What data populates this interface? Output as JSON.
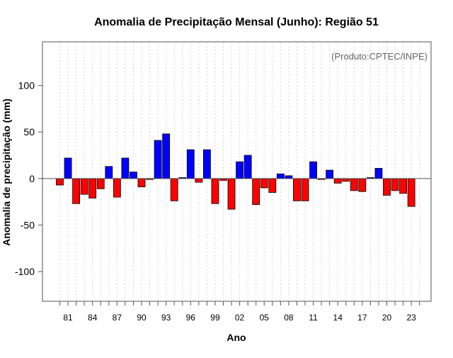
{
  "chart_data": {
    "type": "bar",
    "title": "Anomalia de Precipitação Mensal (Junho): Região 51",
    "annotation": "(Produto:CPTEC/INPE)",
    "xlabel": "Ano",
    "ylabel": "Anomalia de precipitação (mm)",
    "ylim": [
      -132,
      147
    ],
    "yticks": [
      -100,
      -50,
      0,
      50,
      100
    ],
    "xtick_labels": [
      "81",
      "84",
      "87",
      "90",
      "93",
      "96",
      "99",
      "02",
      "05",
      "08",
      "11",
      "14",
      "17",
      "20",
      "23"
    ],
    "categories": [
      "1980",
      "1981",
      "1982",
      "1983",
      "1984",
      "1985",
      "1986",
      "1987",
      "1988",
      "1989",
      "1990",
      "1991",
      "1992",
      "1993",
      "1994",
      "1995",
      "1996",
      "1997",
      "1998",
      "1999",
      "2000",
      "2001",
      "2002",
      "2003",
      "2004",
      "2005",
      "2006",
      "2007",
      "2008",
      "2009",
      "2010",
      "2011",
      "2012",
      "2013",
      "2014",
      "2015",
      "2016",
      "2017",
      "2018",
      "2019",
      "2020",
      "2021",
      "2022",
      "2023",
      "2024"
    ],
    "values": [
      -7,
      22,
      -27,
      -17,
      -21,
      -11,
      13,
      -20,
      22,
      7,
      -9,
      -1,
      41,
      48,
      -24,
      1,
      31,
      -4,
      31,
      -27,
      -2,
      -33,
      18,
      25,
      -28,
      -10,
      -15,
      5,
      3,
      -24,
      -24,
      18,
      -1,
      9,
      -5,
      -3,
      -13,
      -14,
      1,
      11,
      -18,
      -13,
      -16,
      -30,
      0
    ],
    "positive_color": "#0000ff",
    "negative_color": "#ff0000",
    "grid": true
  }
}
